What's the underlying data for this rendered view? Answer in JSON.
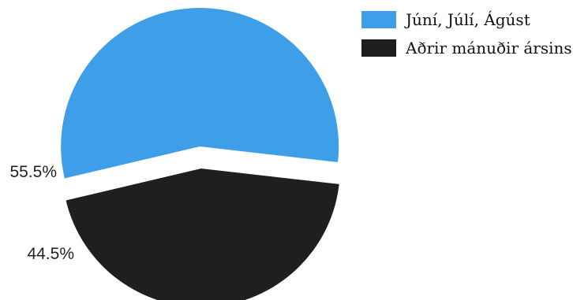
{
  "chart_data": {
    "type": "pie",
    "categories": [
      "Júní, Júlí, Ágúst",
      "Aðrir mánuðir ársins"
    ],
    "values": [
      55.5,
      44.5
    ],
    "unit": "%",
    "data_labels": [
      "55.5%",
      "44.5%"
    ],
    "colors": [
      "#3e9ee8",
      "#1f1f1f"
    ],
    "legend": {
      "placement": "top-right",
      "entries": [
        "Júní, Júlí, Ágúst",
        "Aðrir mánuðir ársins"
      ]
    },
    "exploded": true
  }
}
